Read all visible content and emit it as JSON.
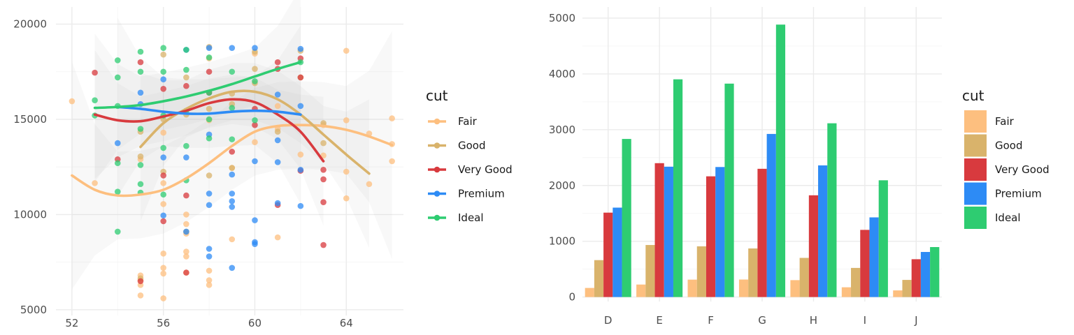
{
  "chart_data": [
    {
      "type": "scatter",
      "title": "",
      "xlabel": "",
      "ylabel": "",
      "xlim": [
        51.3,
        66.5
      ],
      "ylim": [
        4700,
        20900
      ],
      "x_ticks": [
        "52",
        "56",
        "60",
        "64"
      ],
      "y_ticks": [
        "5000",
        "10000",
        "15000",
        "20000"
      ],
      "x_tick_values": [
        52,
        56,
        60,
        64
      ],
      "y_tick_values": [
        5000,
        10000,
        15000,
        20000
      ],
      "grid": true,
      "legend": {
        "title": "cut",
        "placement": "right"
      },
      "smooth": true,
      "series": [
        {
          "name": "Fair",
          "color": "#FDBF7F",
          "points": [
            [
              52,
              15950
            ],
            [
              53,
              11650
            ],
            [
              55,
              6800
            ],
            [
              55,
              6550
            ],
            [
              55,
              5750
            ],
            [
              55,
              6300
            ],
            [
              55,
              12900
            ],
            [
              56,
              5600
            ],
            [
              56,
              6900
            ],
            [
              56,
              7200
            ],
            [
              56,
              7950
            ],
            [
              56,
              10550
            ],
            [
              56,
              11650
            ],
            [
              56,
              14300
            ],
            [
              57,
              6950
            ],
            [
              57,
              7800
            ],
            [
              57,
              8050
            ],
            [
              57,
              9000
            ],
            [
              57,
              9500
            ],
            [
              57,
              10000
            ],
            [
              58,
              6300
            ],
            [
              58,
              6550
            ],
            [
              58,
              7050
            ],
            [
              58,
              14950
            ],
            [
              58,
              18200
            ],
            [
              59,
              8700
            ],
            [
              59,
              12450
            ],
            [
              60,
              13800
            ],
            [
              60,
              18450
            ],
            [
              61,
              8800
            ],
            [
              61,
              14500
            ],
            [
              61,
              15700
            ],
            [
              62,
              13150
            ],
            [
              63,
              13100
            ],
            [
              63,
              14700
            ],
            [
              64,
              10850
            ],
            [
              64,
              12250
            ],
            [
              64,
              14950
            ],
            [
              64,
              18600
            ],
            [
              65,
              11600
            ],
            [
              65,
              14250
            ],
            [
              66,
              12800
            ],
            [
              66,
              13700
            ],
            [
              66,
              15050
            ]
          ],
          "smooth_x": [
            52,
            53,
            54,
            55,
            56,
            57,
            58,
            59,
            60,
            61,
            62,
            63,
            64,
            65,
            66
          ],
          "smooth_y": [
            12050,
            11300,
            11000,
            11050,
            11300,
            11900,
            12700,
            13600,
            14350,
            14650,
            14700,
            14650,
            14450,
            14100,
            13650
          ]
        },
        {
          "name": "Good",
          "color": "#D9B36B",
          "points": [
            [
              55,
              6650
            ],
            [
              55,
              13050
            ],
            [
              55,
              14350
            ],
            [
              56,
              12250
            ],
            [
              56,
              15000
            ],
            [
              56,
              18400
            ],
            [
              57,
              9100
            ],
            [
              57,
              15250
            ],
            [
              57,
              17200
            ],
            [
              58,
              12050
            ],
            [
              58,
              15550
            ],
            [
              58,
              18800
            ],
            [
              59,
              12450
            ],
            [
              59,
              15800
            ],
            [
              59,
              16350
            ],
            [
              60,
              16900
            ],
            [
              60,
              17650
            ],
            [
              60,
              18550
            ],
            [
              61,
              14350
            ],
            [
              62,
              17200
            ],
            [
              62,
              18600
            ],
            [
              63,
              13750
            ],
            [
              63,
              14800
            ]
          ],
          "smooth_x": [
            55,
            56,
            57,
            58,
            59,
            60,
            61,
            62,
            63,
            64,
            65
          ],
          "smooth_y": [
            13550,
            14800,
            15550,
            16100,
            16450,
            16450,
            16050,
            15250,
            14200,
            13150,
            12150
          ]
        },
        {
          "name": "Very Good",
          "color": "#D83A3E",
          "points": [
            [
              53,
              17450
            ],
            [
              54,
              12900
            ],
            [
              55,
              6500
            ],
            [
              55,
              18000
            ],
            [
              56,
              9650
            ],
            [
              56,
              12050
            ],
            [
              56,
              16600
            ],
            [
              57,
              6950
            ],
            [
              57,
              11000
            ],
            [
              57,
              16750
            ],
            [
              58,
              16400
            ],
            [
              58,
              17500
            ],
            [
              59,
              13300
            ],
            [
              60,
              14700
            ],
            [
              60,
              15550
            ],
            [
              61,
              17650
            ],
            [
              61,
              18000
            ],
            [
              61,
              10500
            ],
            [
              62,
              17200
            ],
            [
              62,
              18200
            ],
            [
              62,
              12300
            ],
            [
              63,
              8400
            ],
            [
              63,
              10650
            ],
            [
              63,
              11850
            ],
            [
              63,
              12350
            ]
          ],
          "smooth_x": [
            53,
            54,
            55,
            56,
            57,
            58,
            59,
            60,
            61,
            62,
            63
          ],
          "smooth_y": [
            15250,
            14950,
            14900,
            15150,
            15450,
            15850,
            16050,
            15900,
            15250,
            14350,
            12800
          ]
        },
        {
          "name": "Premium",
          "color": "#2D8BF5",
          "points": [
            [
              54,
              13750
            ],
            [
              55,
              15800
            ],
            [
              55,
              16400
            ],
            [
              56,
              9950
            ],
            [
              56,
              13000
            ],
            [
              56,
              17100
            ],
            [
              57,
              9100
            ],
            [
              57,
              13000
            ],
            [
              57,
              18650
            ],
            [
              58,
              7800
            ],
            [
              58,
              8200
            ],
            [
              58,
              10500
            ],
            [
              58,
              11100
            ],
            [
              58,
              14200
            ],
            [
              58,
              18750
            ],
            [
              59,
              7200
            ],
            [
              59,
              10400
            ],
            [
              59,
              10700
            ],
            [
              59,
              11100
            ],
            [
              59,
              12100
            ],
            [
              59,
              18750
            ],
            [
              60,
              8450
            ],
            [
              60,
              8550
            ],
            [
              60,
              9700
            ],
            [
              60,
              12800
            ],
            [
              60,
              18750
            ],
            [
              61,
              10600
            ],
            [
              61,
              12750
            ],
            [
              61,
              13900
            ],
            [
              61,
              16300
            ],
            [
              62,
              10450
            ],
            [
              62,
              12350
            ],
            [
              62,
              15700
            ],
            [
              62,
              18700
            ]
          ],
          "smooth_x": [
            54,
            55,
            56,
            57,
            58,
            59,
            60,
            61,
            62
          ],
          "smooth_y": [
            15650,
            15550,
            15400,
            15300,
            15300,
            15400,
            15450,
            15400,
            15250
          ]
        },
        {
          "name": "Ideal",
          "color": "#2ECC71",
          "points": [
            [
              53,
              15200
            ],
            [
              53,
              16000
            ],
            [
              54,
              9100
            ],
            [
              54,
              11200
            ],
            [
              54,
              12700
            ],
            [
              54,
              15700
            ],
            [
              54,
              17200
            ],
            [
              54,
              18100
            ],
            [
              55,
              11150
            ],
            [
              55,
              11600
            ],
            [
              55,
              12600
            ],
            [
              55,
              14500
            ],
            [
              55,
              17500
            ],
            [
              55,
              18550
            ],
            [
              56,
              11050
            ],
            [
              56,
              13500
            ],
            [
              56,
              15200
            ],
            [
              56,
              17500
            ],
            [
              56,
              18750
            ],
            [
              57,
              11800
            ],
            [
              57,
              13600
            ],
            [
              57,
              15450
            ],
            [
              57,
              17600
            ],
            [
              57,
              18650
            ],
            [
              58,
              14000
            ],
            [
              58,
              15000
            ],
            [
              58,
              16400
            ],
            [
              58,
              18250
            ],
            [
              59,
              13950
            ],
            [
              59,
              15600
            ],
            [
              59,
              17500
            ],
            [
              60,
              14950
            ],
            [
              60,
              17000
            ],
            [
              62,
              18000
            ]
          ],
          "smooth_x": [
            53,
            54,
            55,
            56,
            57,
            58,
            59,
            60,
            61,
            62
          ],
          "smooth_y": [
            15600,
            15650,
            15750,
            15950,
            16200,
            16500,
            16850,
            17250,
            17650,
            18000
          ]
        }
      ]
    },
    {
      "type": "bar",
      "title": "",
      "xlabel": "",
      "ylabel": "",
      "ylim": [
        -80,
        5200
      ],
      "y_ticks": [
        "0",
        "1000",
        "2000",
        "3000",
        "4000",
        "5000"
      ],
      "y_tick_values": [
        0,
        1000,
        2000,
        3000,
        4000,
        5000
      ],
      "categories": [
        "D",
        "E",
        "F",
        "G",
        "H",
        "I",
        "J"
      ],
      "grid": true,
      "legend": {
        "title": "cut",
        "placement": "right"
      },
      "series": [
        {
          "name": "Fair",
          "color": "#FDBF7F",
          "values": [
            163,
            224,
            312,
            314,
            303,
            175,
            119
          ]
        },
        {
          "name": "Good",
          "color": "#D9B36B",
          "values": [
            662,
            933,
            909,
            871,
            702,
            522,
            307
          ]
        },
        {
          "name": "Very Good",
          "color": "#D83A3E",
          "values": [
            1513,
            2400,
            2164,
            2299,
            1824,
            1204,
            678
          ]
        },
        {
          "name": "Premium",
          "color": "#2D8BF5",
          "values": [
            1603,
            2337,
            2331,
            2924,
            2360,
            1428,
            808
          ]
        },
        {
          "name": "Ideal",
          "color": "#2ECC71",
          "values": [
            2834,
            3903,
            3826,
            4884,
            3115,
            2093,
            896
          ]
        }
      ]
    }
  ]
}
